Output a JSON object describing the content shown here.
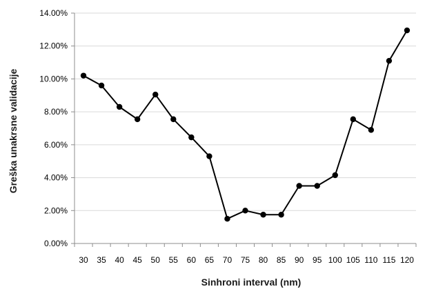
{
  "chart_data": {
    "type": "line",
    "title": "",
    "xlabel": "Sinhroni interval (nm)",
    "ylabel": "Greška unakrsne validacije",
    "x": [
      "30",
      "35",
      "40",
      "45",
      "50",
      "55",
      "60",
      "65",
      "70",
      "75",
      "80",
      "85",
      "90",
      "95",
      "100",
      "105",
      "110",
      "115",
      "120"
    ],
    "series": [
      {
        "values": [
          10.2,
          9.6,
          8.3,
          7.55,
          9.05,
          7.55,
          6.45,
          5.3,
          1.5,
          2.0,
          1.75,
          1.75,
          3.5,
          3.5,
          4.15,
          7.55,
          6.9,
          11.1,
          12.95
        ]
      }
    ],
    "ylim": [
      0,
      14
    ],
    "yticks": [
      "0.00%",
      "2.00%",
      "4.00%",
      "6.00%",
      "8.00%",
      "10.00%",
      "12.00%",
      "14.00%"
    ],
    "grid": "horizontal",
    "line_color": "#000000",
    "grid_color": "#d9d9d9"
  }
}
